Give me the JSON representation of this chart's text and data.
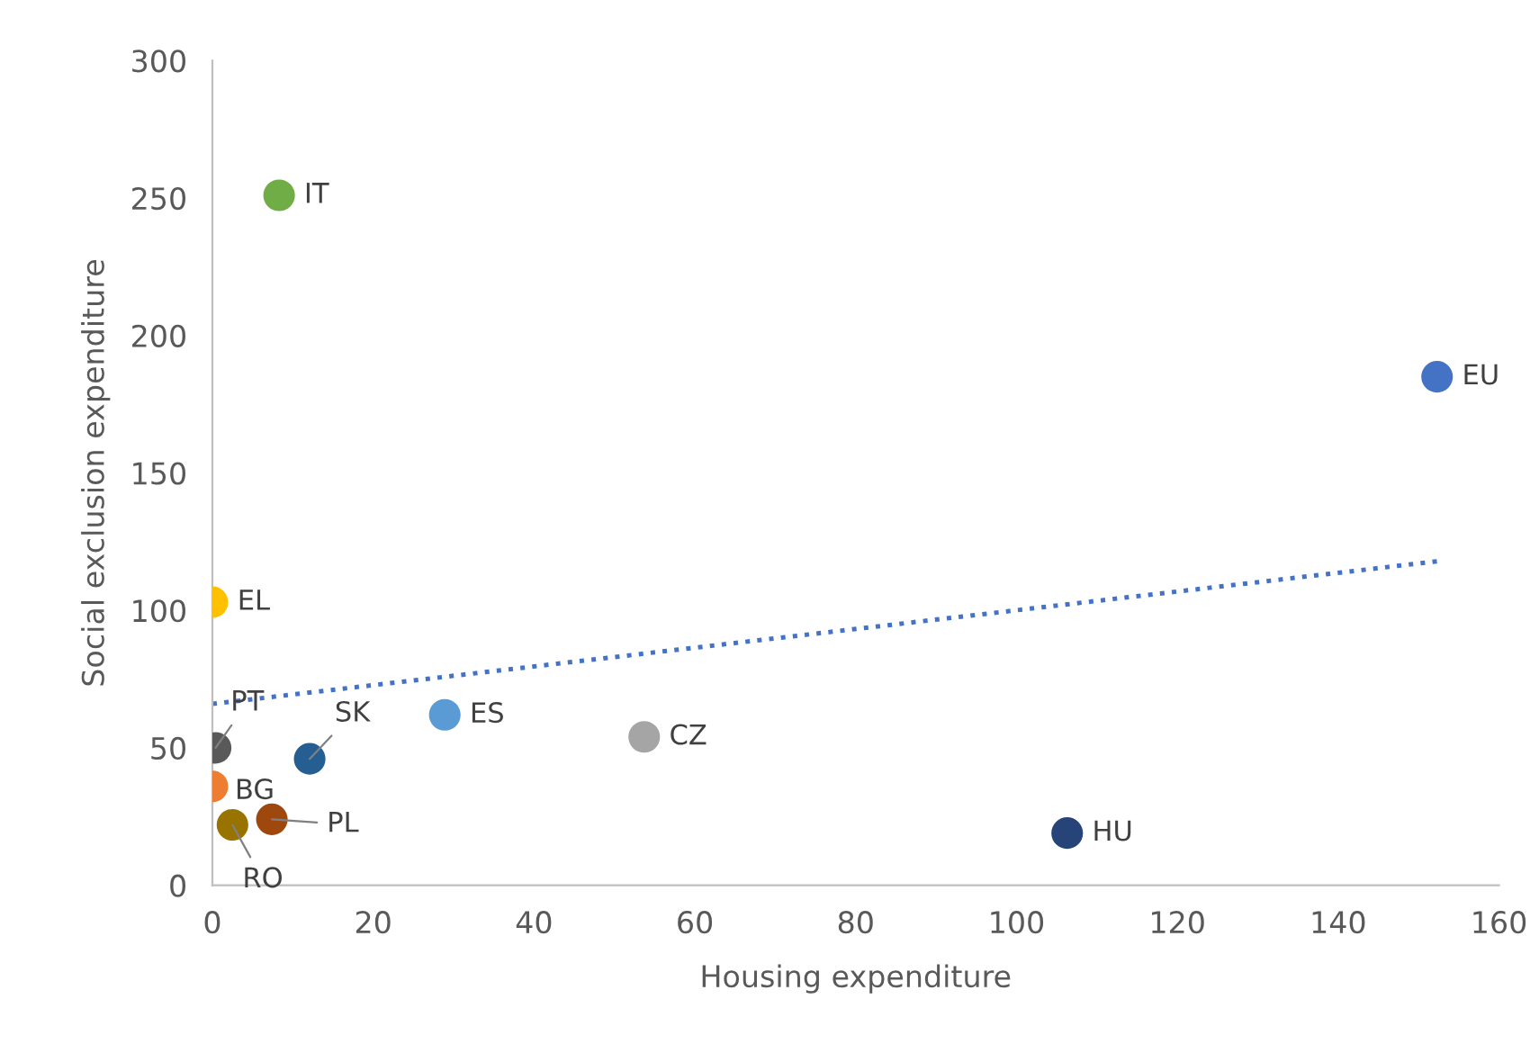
{
  "chart_data": {
    "type": "scatter",
    "xlabel": "Housing expenditure",
    "ylabel": "Social exclusion expenditure",
    "xlim": [
      0,
      160
    ],
    "xticks": [
      0,
      20,
      40,
      60,
      80,
      100,
      120,
      140,
      160
    ],
    "ylim": [
      0,
      300
    ],
    "yticks": [
      0,
      50,
      100,
      150,
      200,
      250,
      300
    ],
    "grid": false,
    "legend": false,
    "marker": "circle",
    "series": [
      {
        "name": "IT",
        "color": "#70ad47",
        "x": [
          8.3
        ],
        "values": [
          251
        ]
      },
      {
        "name": "EU",
        "color": "#4472c4",
        "x": [
          152.3
        ],
        "values": [
          185
        ]
      },
      {
        "name": "EL",
        "color": "#ffc000",
        "x": [
          0
        ],
        "values": [
          103
        ]
      },
      {
        "name": "PT",
        "color": "#595959",
        "x": [
          0.4
        ],
        "values": [
          50
        ]
      },
      {
        "name": "ES",
        "color": "#5b9bd5",
        "x": [
          28.9
        ],
        "values": [
          62
        ]
      },
      {
        "name": "SK",
        "color": "#255e91",
        "x": [
          12.1
        ],
        "values": [
          46
        ]
      },
      {
        "name": "CZ",
        "color": "#a5a5a5",
        "x": [
          53.7
        ],
        "values": [
          54
        ]
      },
      {
        "name": "BG",
        "color": "#ed7d31",
        "x": [
          0
        ],
        "values": [
          36
        ]
      },
      {
        "name": "PL",
        "color": "#9e480e",
        "x": [
          7.4
        ],
        "values": [
          24
        ]
      },
      {
        "name": "RO",
        "color": "#997300",
        "x": [
          2.5
        ],
        "values": [
          22
        ]
      },
      {
        "name": "HU",
        "color": "#264478",
        "x": [
          106.3
        ],
        "values": [
          19
        ]
      },
      {
        "type": "line",
        "color": "#4472c4",
        "line_style": "dotted",
        "marker": "none",
        "x": [
          0,
          152.7
        ],
        "values": [
          66,
          118
        ]
      }
    ]
  }
}
